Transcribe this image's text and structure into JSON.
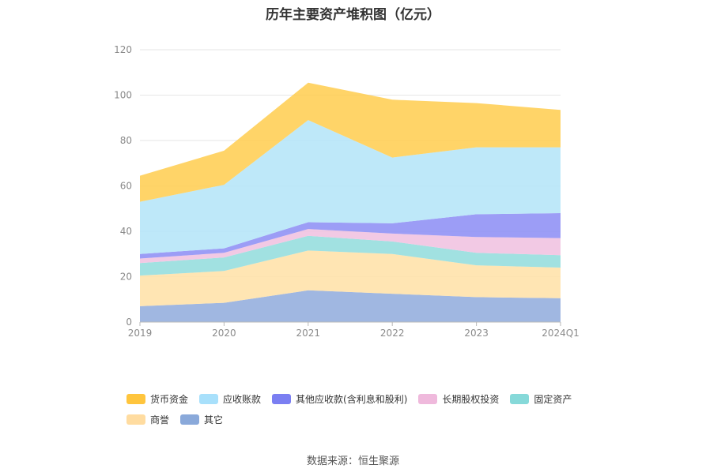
{
  "title": "历年主要资产堆积图（亿元）",
  "source": "数据来源：恒生聚源",
  "chart_data": {
    "type": "area",
    "stacked": true,
    "title": "历年主要资产堆积图（亿元）",
    "categories": [
      "2019",
      "2020",
      "2021",
      "2022",
      "2023",
      "2024Q1"
    ],
    "ylim": [
      0,
      120
    ],
    "yticks": [
      0,
      20,
      40,
      60,
      80,
      100,
      120
    ],
    "grid": true,
    "legend_position": "bottom",
    "series": [
      {
        "name": "其它",
        "color": "#8faadc",
        "values": [
          7.0,
          8.5,
          14.0,
          12.5,
          11.0,
          10.5
        ]
      },
      {
        "name": "商誉",
        "color": "#ffe0a6",
        "values": [
          13.5,
          14.0,
          17.5,
          17.5,
          14.0,
          13.5
        ]
      },
      {
        "name": "固定资产",
        "color": "#90dcdc",
        "values": [
          5.5,
          6.0,
          6.5,
          5.5,
          5.5,
          5.5
        ]
      },
      {
        "name": "长期股权投资",
        "color": "#f0bfdf",
        "values": [
          2.0,
          2.0,
          3.0,
          3.5,
          7.0,
          7.5
        ]
      },
      {
        "name": "其他应收款(含利息和股利)",
        "color": "#8b8cf5",
        "values": [
          2.0,
          2.0,
          3.0,
          4.5,
          10.0,
          11.0
        ]
      },
      {
        "name": "应收账款",
        "color": "#b3e4f8",
        "values": [
          23.0,
          28.0,
          45.0,
          29.0,
          29.5,
          29.0
        ]
      },
      {
        "name": "货币资金",
        "color": "#ffcc4d",
        "values": [
          11.5,
          15.0,
          16.5,
          25.5,
          19.5,
          16.5
        ]
      }
    ]
  },
  "legend": [
    {
      "label": "货币资金",
      "color": "#ffc53d"
    },
    {
      "label": "应收账款",
      "color": "#a8e0fb"
    },
    {
      "label": "其他应收款(含利息和股利)",
      "color": "#7b7ff2"
    },
    {
      "label": "长期股权投资",
      "color": "#efb9dc"
    },
    {
      "label": "固定资产",
      "color": "#86d9d9"
    },
    {
      "label": "商誉",
      "color": "#ffdca0"
    },
    {
      "label": "其它",
      "color": "#8aa9da"
    }
  ]
}
